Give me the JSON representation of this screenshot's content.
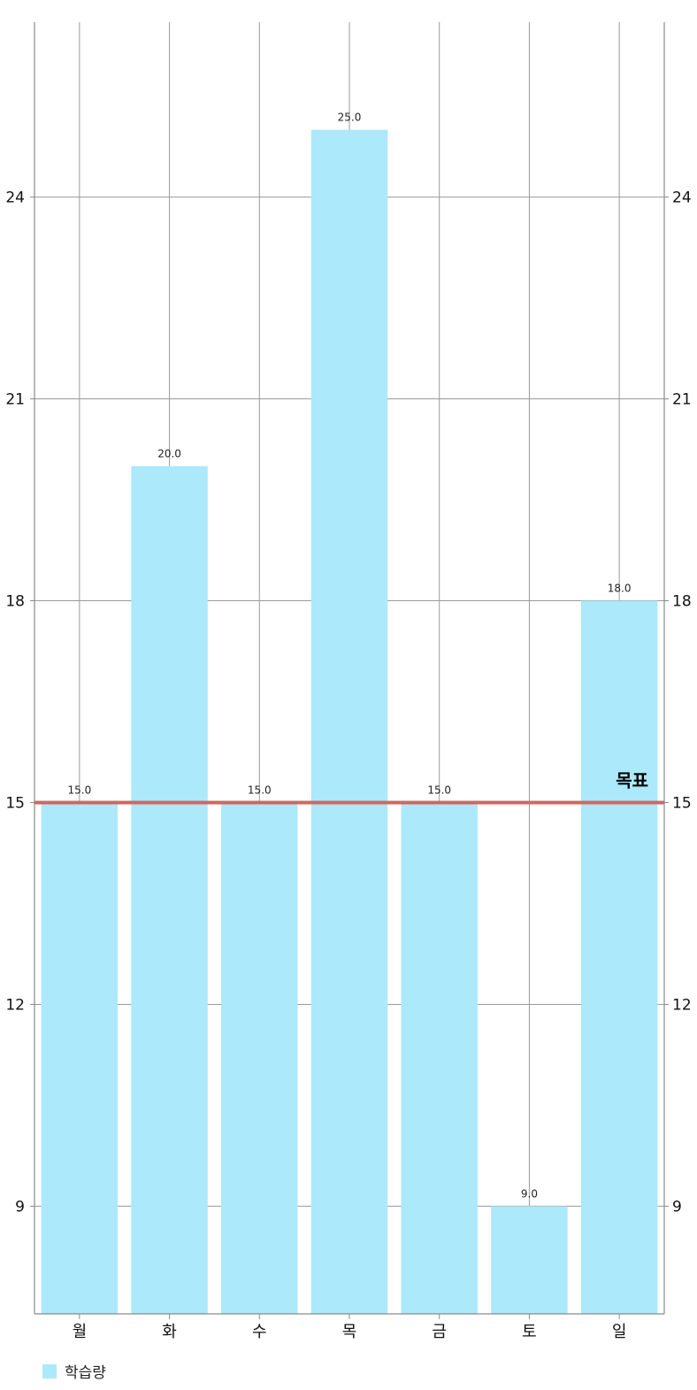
{
  "chart_data": {
    "type": "bar",
    "categories": [
      "월",
      "화",
      "수",
      "목",
      "금",
      "토",
      "일"
    ],
    "series": [
      {
        "name": "학습량",
        "values": [
          15.0,
          20.0,
          15.0,
          25.0,
          15.0,
          9.0,
          18.0
        ],
        "color": "#ABE9FB"
      }
    ],
    "value_labels": [
      "15.0",
      "20.0",
      "15.0",
      "25.0",
      "15.0",
      "9.0",
      "18.0"
    ],
    "ylim": [
      7.4,
      26.6
    ],
    "yticks": [
      9,
      12,
      15,
      18,
      21,
      24
    ],
    "ytick_labels": [
      "9",
      "12",
      "15",
      "18",
      "21",
      "24"
    ],
    "y2tick_labels": [
      "9",
      "12",
      "15",
      "18",
      "21",
      "24"
    ],
    "grid": true,
    "legend": {
      "position": "bottom-left",
      "entries": [
        "학습량"
      ]
    },
    "limit_line": {
      "value": 15,
      "label": "목표",
      "color": "#CD6862"
    }
  }
}
